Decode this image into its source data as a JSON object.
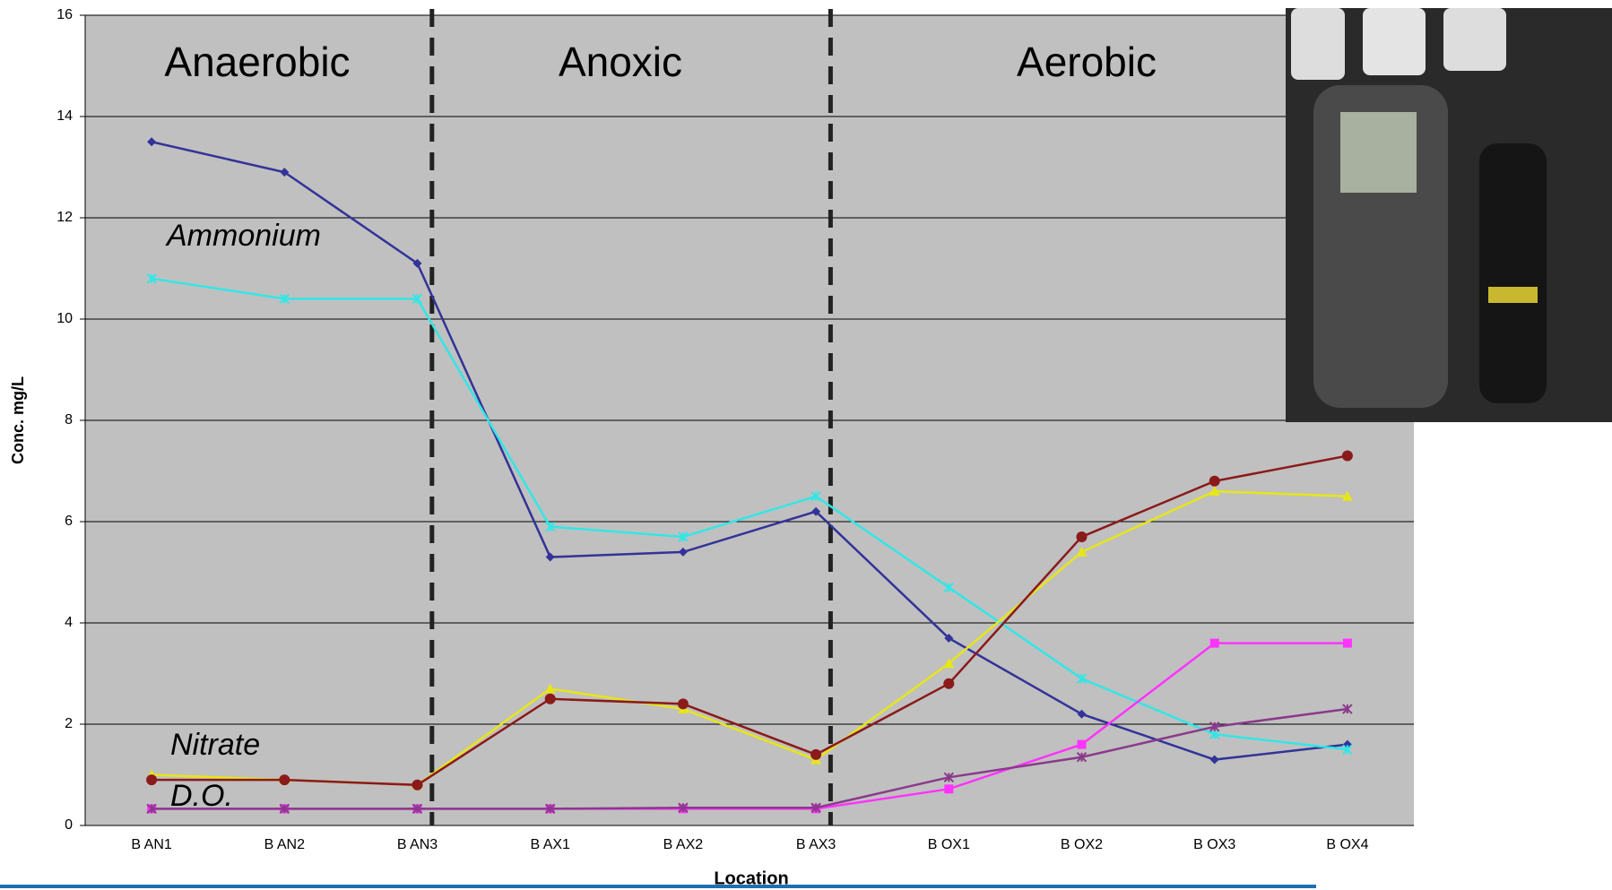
{
  "chart_data": {
    "type": "line",
    "xlabel": "Location",
    "ylabel": "Conc. mg/L",
    "categories": [
      "B AN1",
      "B AN2",
      "B AN3",
      "B AX1",
      "B AX2",
      "B AX3",
      "B OX1",
      "B OX2",
      "B OX3",
      "B OX4"
    ],
    "series": [
      {
        "color": "#333399",
        "marker": "diamond",
        "values": [
          13.5,
          12.9,
          11.1,
          5.3,
          5.4,
          6.2,
          3.7,
          2.2,
          1.3,
          1.6
        ]
      },
      {
        "color": "#33e6e6",
        "marker": "x",
        "values": [
          10.8,
          10.4,
          10.4,
          5.9,
          5.7,
          6.5,
          4.7,
          2.9,
          1.8,
          1.5
        ]
      },
      {
        "color": "#e6e619",
        "marker": "triangle",
        "values": [
          1.0,
          0.9,
          0.8,
          2.7,
          2.3,
          1.3,
          3.2,
          5.4,
          6.6,
          6.5
        ]
      },
      {
        "color": "#8b1a1a",
        "marker": "circle",
        "values": [
          0.9,
          0.9,
          0.8,
          2.5,
          2.4,
          1.4,
          2.8,
          5.7,
          6.8,
          7.3
        ]
      },
      {
        "color": "#ff33ff",
        "marker": "square",
        "values": [
          0.33,
          0.33,
          0.33,
          0.33,
          0.33,
          0.33,
          0.72,
          1.6,
          3.6,
          3.6
        ]
      },
      {
        "color": "#8a3a8a",
        "marker": "x",
        "values": [
          0.33,
          0.33,
          0.33,
          0.33,
          0.35,
          0.35,
          0.95,
          1.35,
          1.95,
          2.3
        ]
      }
    ],
    "ylim": [
      0,
      16
    ],
    "yticks": [
      0,
      2,
      4,
      6,
      8,
      10,
      12,
      14,
      16
    ],
    "grid": true,
    "annotations": {
      "zones": [
        "Anaerobic",
        "Anoxic",
        "Aerobic"
      ],
      "labels": [
        "Ammonium",
        "Nitrate",
        "D.O."
      ]
    }
  }
}
